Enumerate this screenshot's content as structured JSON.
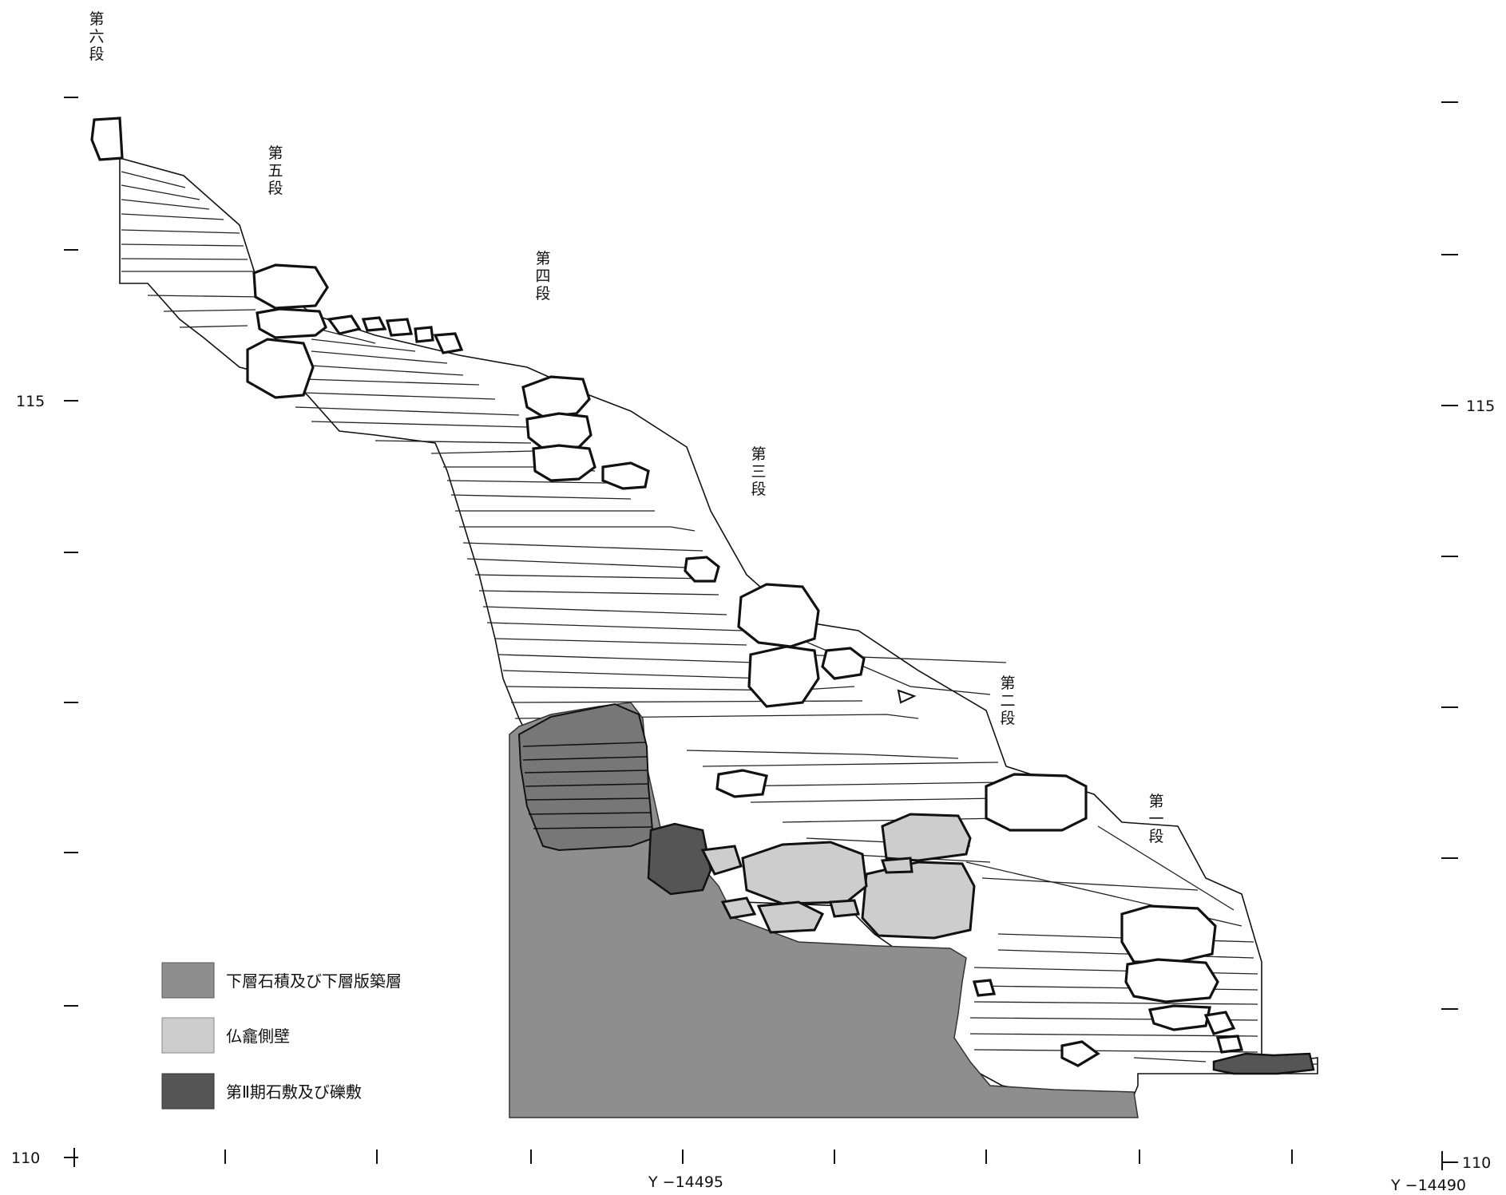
{
  "step_labels": [
    {
      "id": "step-6",
      "chars": [
        "第",
        "六",
        "段"
      ]
    },
    {
      "id": "step-5",
      "chars": [
        "第",
        "五",
        "段"
      ]
    },
    {
      "id": "step-4",
      "chars": [
        "第",
        "四",
        "段"
      ]
    },
    {
      "id": "step-3",
      "chars": [
        "第",
        "三",
        "段"
      ]
    },
    {
      "id": "step-2",
      "chars": [
        "第",
        "二",
        "段"
      ]
    },
    {
      "id": "step-1",
      "chars": [
        "第",
        "一",
        "段"
      ]
    }
  ],
  "elevation_labels": {
    "left_115": "115",
    "right_115": "115",
    "left_110": "110",
    "right_110": "110"
  },
  "x_axis_labels": {
    "y_14495": "Y −14495",
    "y_14490": "Y −14490"
  },
  "legend": [
    {
      "label": "下層石積及び下層版築層",
      "color": "#8e8e8e"
    },
    {
      "label": "仏龕側壁",
      "color": "#cdcdcd"
    },
    {
      "label": "第Ⅱ期石敷及び礫敷",
      "color": "#555555"
    }
  ],
  "colors": {
    "lower_layer": "#8e8e8e",
    "niche_wall": "#cdcdcd",
    "phase2_paving": "#555555",
    "line": "#111111"
  }
}
